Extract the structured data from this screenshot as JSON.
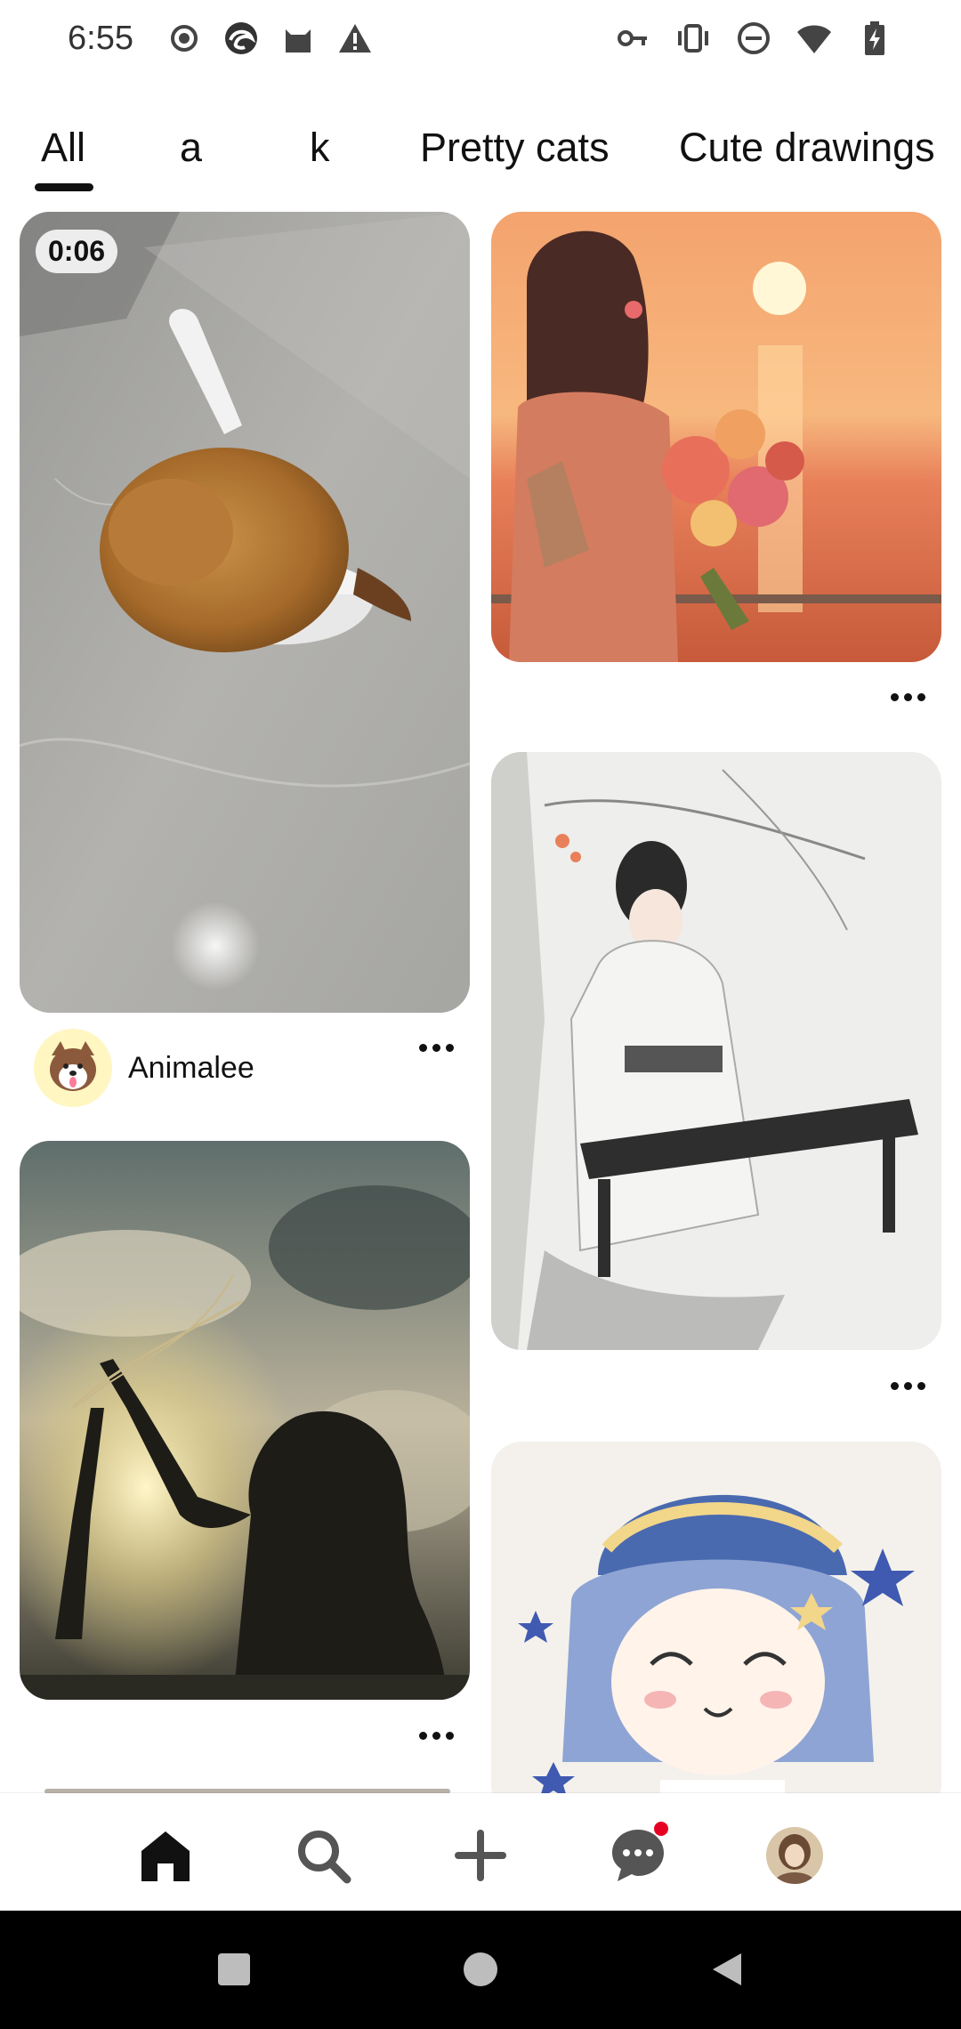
{
  "status_bar": {
    "time": "6:55",
    "left_icons": [
      "record-icon",
      "browser-icon",
      "cat-icon",
      "warning-icon"
    ],
    "right_icons": [
      "key-icon",
      "vibrate-icon",
      "do-not-disturb-icon",
      "wifi-icon",
      "battery-charging-icon"
    ]
  },
  "tabs": [
    {
      "label": "All",
      "selected": true
    },
    {
      "label": "a",
      "selected": false
    },
    {
      "label": "k",
      "selected": false
    },
    {
      "label": "Pretty cats",
      "selected": false
    },
    {
      "label": "Cute drawings",
      "selected": false
    }
  ],
  "feed": {
    "left": [
      {
        "type": "video",
        "duration": "0:06",
        "author": "Animalee",
        "image": "kitten-in-bowl"
      },
      {
        "type": "image",
        "image": "silhouette-with-flowers"
      }
    ],
    "right": [
      {
        "type": "image",
        "image": "girl-with-bouquet-sunset"
      },
      {
        "type": "image",
        "image": "woman-playing-guzheng"
      },
      {
        "type": "image",
        "image": "chibi-girl-blue-hat"
      }
    ]
  },
  "bottom_nav": [
    "home-icon",
    "search-icon",
    "create-icon",
    "messages-icon",
    "profile-avatar"
  ],
  "colors": {
    "accent": "#e60023",
    "text": "#111111"
  }
}
